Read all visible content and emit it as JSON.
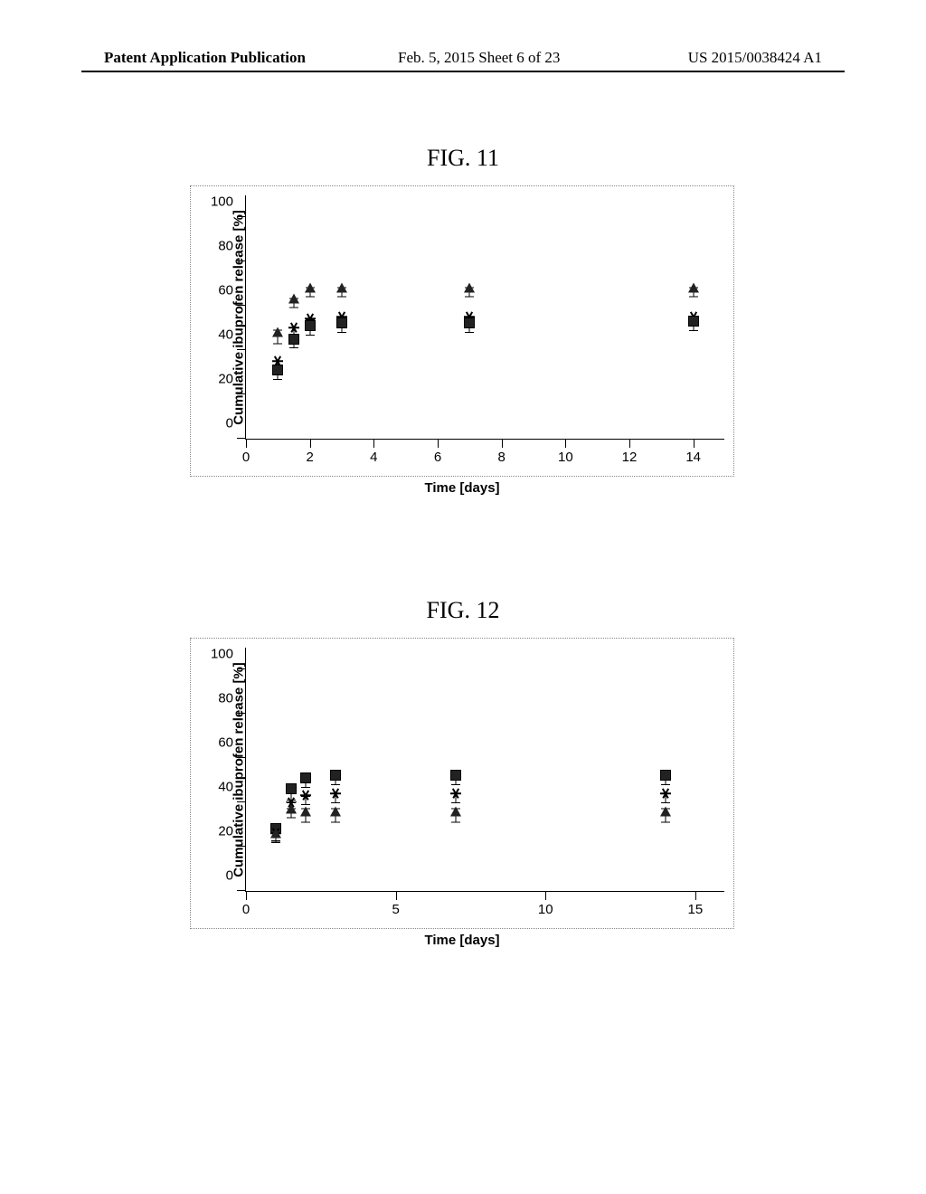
{
  "header": {
    "left": "Patent Application Publication",
    "mid": "Feb. 5, 2015   Sheet 6 of 23",
    "right": "US 2015/0038424 A1"
  },
  "fig11": {
    "title": "FIG. 11",
    "type": "scatter",
    "ylabel": "Cumulative ibuprofen release [%]",
    "xlabel": "Time [days]",
    "xlim": [
      0,
      15
    ],
    "ylim": [
      0,
      110
    ],
    "xticks": [
      0,
      2,
      4,
      6,
      8,
      10,
      12,
      14
    ],
    "yticks": [
      0,
      20,
      40,
      60,
      80,
      100
    ],
    "background_color": "#ffffff",
    "axis_color": "#000000",
    "border_style": "dotted",
    "label_fontsize": 15,
    "label_fontweight": "bold",
    "tick_fontsize": 15,
    "errorbar_height": 3,
    "series": [
      {
        "name": "triangle",
        "marker": "triangle",
        "color": "#222222",
        "points": [
          {
            "x": 1,
            "y": 48,
            "err": 3
          },
          {
            "x": 1.5,
            "y": 63,
            "err": 2
          },
          {
            "x": 2,
            "y": 68,
            "err": 2
          },
          {
            "x": 3,
            "y": 68,
            "err": 2
          },
          {
            "x": 7,
            "y": 68,
            "err": 2
          },
          {
            "x": 14,
            "y": 68,
            "err": 2
          }
        ]
      },
      {
        "name": "asterisk",
        "marker": "asterisk",
        "color": "#000000",
        "points": [
          {
            "x": 1,
            "y": 35,
            "err": 2
          },
          {
            "x": 1.5,
            "y": 50,
            "err": 2
          },
          {
            "x": 2,
            "y": 54,
            "err": 2
          },
          {
            "x": 3,
            "y": 55,
            "err": 2
          },
          {
            "x": 7,
            "y": 55,
            "err": 2
          },
          {
            "x": 14,
            "y": 55,
            "err": 2
          }
        ]
      },
      {
        "name": "square",
        "marker": "square",
        "color": "#222222",
        "points": [
          {
            "x": 1,
            "y": 31,
            "err": 2
          },
          {
            "x": 1.5,
            "y": 45,
            "err": 2
          },
          {
            "x": 2,
            "y": 51,
            "err": 2
          },
          {
            "x": 3,
            "y": 52,
            "err": 2
          },
          {
            "x": 7,
            "y": 52,
            "err": 2
          },
          {
            "x": 14,
            "y": 53,
            "err": 2
          }
        ]
      }
    ]
  },
  "fig12": {
    "title": "FIG. 12",
    "type": "scatter",
    "ylabel": "Cumulative ibuprofen release [%]",
    "xlabel": "Time [days]",
    "xlim": [
      0,
      16
    ],
    "ylim": [
      0,
      110
    ],
    "xticks": [
      0,
      5,
      10,
      15
    ],
    "yticks": [
      0,
      20,
      40,
      60,
      80,
      100
    ],
    "background_color": "#ffffff",
    "axis_color": "#000000",
    "border_style": "dotted",
    "label_fontsize": 15,
    "label_fontweight": "bold",
    "tick_fontsize": 15,
    "errorbar_height": 3,
    "series": [
      {
        "name": "square",
        "marker": "square",
        "color": "#222222",
        "points": [
          {
            "x": 1,
            "y": 28,
            "err": 3
          },
          {
            "x": 1.5,
            "y": 46,
            "err": 3
          },
          {
            "x": 2,
            "y": 51,
            "err": 2
          },
          {
            "x": 3,
            "y": 52,
            "err": 2
          },
          {
            "x": 7,
            "y": 52,
            "err": 2
          },
          {
            "x": 14,
            "y": 52,
            "err": 2
          }
        ]
      },
      {
        "name": "asterisk",
        "marker": "asterisk",
        "color": "#000000",
        "points": [
          {
            "x": 1,
            "y": 26,
            "err": 2
          },
          {
            "x": 1.5,
            "y": 40,
            "err": 2
          },
          {
            "x": 2,
            "y": 43,
            "err": 2
          },
          {
            "x": 3,
            "y": 44,
            "err": 2
          },
          {
            "x": 7,
            "y": 44,
            "err": 2
          },
          {
            "x": 14,
            "y": 44,
            "err": 2
          }
        ]
      },
      {
        "name": "triangle",
        "marker": "triangle",
        "color": "#222222",
        "points": [
          {
            "x": 1,
            "y": 26,
            "err": 2
          },
          {
            "x": 1.5,
            "y": 37,
            "err": 2
          },
          {
            "x": 2,
            "y": 36,
            "err": 3
          },
          {
            "x": 3,
            "y": 36,
            "err": 3
          },
          {
            "x": 7,
            "y": 36,
            "err": 3
          },
          {
            "x": 14,
            "y": 36,
            "err": 3
          }
        ]
      }
    ]
  }
}
